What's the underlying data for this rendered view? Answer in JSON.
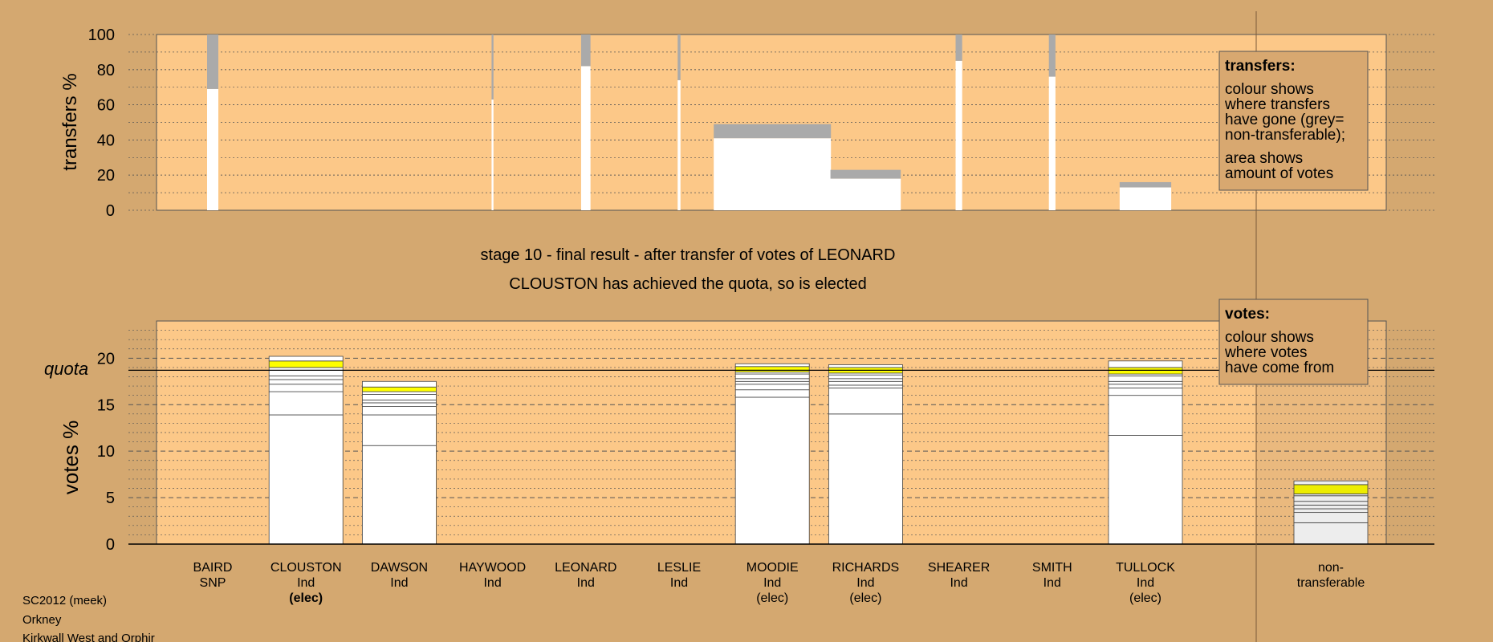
{
  "colors": {
    "background": "#d4a870",
    "plot_area": "#fcc888",
    "bar": "#ffffff",
    "non_transferable": "#aaaaaa",
    "highlight": "#ffff00",
    "legend_box": "#d8a870"
  },
  "stage_title": "stage 10 - final result - after transfer of votes of LEONARD",
  "stage_subtitle": "CLOUSTON has achieved the quota, so is elected",
  "footer": [
    "SC2012 (meek)",
    "Orkney",
    "Kirkwall West and Orphir"
  ],
  "quota_label": "quota",
  "legends": {
    "transfers": {
      "title": "transfers:",
      "lines": [
        "colour shows",
        "where transfers",
        "have gone (grey=",
        "non-transferable);",
        "area shows",
        "amount of votes"
      ]
    },
    "votes": {
      "title": "votes:",
      "lines": [
        "colour shows",
        "where votes",
        "have come from"
      ]
    }
  },
  "chart_data": [
    {
      "type": "bar",
      "name": "transfers",
      "ylabel": "transfers %",
      "ylim": [
        0,
        100
      ],
      "yticks": [
        0,
        20,
        40,
        60,
        80,
        100
      ],
      "grid": true,
      "candidates": [
        "BAIRD",
        "CLOUSTON",
        "DAWSON",
        "HAYWOOD",
        "LEONARD",
        "LESLIE",
        "MOODIE",
        "RICHARDS",
        "SHEARER",
        "SMITH",
        "TULLOCK"
      ],
      "transferred_pct": [
        69,
        0,
        0,
        63,
        82,
        74,
        41,
        18,
        85,
        76,
        13
      ],
      "nontransferable_pct": [
        31,
        0,
        0,
        37,
        18,
        26,
        8,
        5,
        15,
        24,
        3
      ],
      "relative_width": [
        0.12,
        0,
        0,
        0.02,
        0.1,
        0.03,
        1.25,
        0.75,
        0.07,
        0.07,
        0.55
      ]
    },
    {
      "type": "bar",
      "name": "votes",
      "ylabel": "votes %",
      "ylim": [
        0,
        24
      ],
      "yticks": [
        0,
        5,
        10,
        15,
        20
      ],
      "quota": 18.7,
      "grid": true,
      "categories": [
        {
          "name": "BAIRD",
          "party": "SNP",
          "status": ""
        },
        {
          "name": "CLOUSTON",
          "party": "Ind",
          "status": "(elec)"
        },
        {
          "name": "DAWSON",
          "party": "Ind",
          "status": ""
        },
        {
          "name": "HAYWOOD",
          "party": "Ind",
          "status": ""
        },
        {
          "name": "LEONARD",
          "party": "Ind",
          "status": ""
        },
        {
          "name": "LESLIE",
          "party": "Ind",
          "status": ""
        },
        {
          "name": "MOODIE",
          "party": "Ind",
          "status": "(elec)"
        },
        {
          "name": "RICHARDS",
          "party": "Ind",
          "status": "(elec)"
        },
        {
          "name": "SHEARER",
          "party": "Ind",
          "status": ""
        },
        {
          "name": "SMITH",
          "party": "Ind",
          "status": ""
        },
        {
          "name": "TULLOCK",
          "party": "Ind",
          "status": "(elec)"
        }
      ],
      "nontransferable": {
        "label": "non-transferable",
        "segments": [
          2.3,
          1.1,
          0.4,
          0.4,
          0.4,
          0.6,
          0.2,
          1.0,
          0.4
        ]
      },
      "segments": [
        [],
        [
          13.9,
          2.5,
          0.8,
          0.5,
          0.4,
          0.6,
          0.3,
          0.7,
          0.5
        ],
        [
          10.6,
          3.3,
          0.9,
          0.4,
          0.3,
          0.6,
          0.3,
          0.5,
          0.6
        ],
        [],
        [],
        [],
        [
          15.8,
          0.8,
          0.6,
          0.3,
          0.3,
          0.5,
          0.2,
          0.6,
          0.3
        ],
        [
          14.0,
          2.8,
          0.3,
          0.4,
          0.3,
          0.4,
          0.2,
          0.6,
          0.3
        ],
        [],
        [],
        [
          11.7,
          4.3,
          0.8,
          0.4,
          0.3,
          0.6,
          0.2,
          0.7,
          0.7
        ]
      ],
      "highlight_segment_index": 7
    }
  ]
}
